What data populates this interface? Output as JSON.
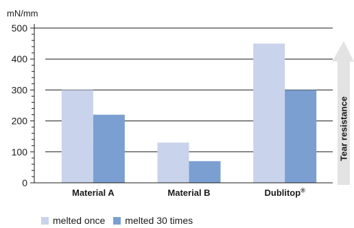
{
  "chart_data": {
    "type": "bar",
    "unit_label": "mN/mm",
    "categories": [
      "Material A",
      "Material B",
      "Dublitop"
    ],
    "category_superscripts": [
      "",
      "",
      "®"
    ],
    "series": [
      {
        "name": "melted once",
        "color": "#c9d3eb",
        "values": [
          300,
          130,
          450
        ]
      },
      {
        "name": "melted 30 times",
        "color": "#7b9fd1",
        "values": [
          220,
          70,
          300
        ]
      }
    ],
    "ylim": [
      0,
      500
    ],
    "yticks": [
      0,
      100,
      200,
      300,
      400,
      500
    ],
    "grid": true,
    "legend_position": "bottom-left",
    "side_label": "Tear resistance",
    "arrow_color": "#e3e3e3"
  }
}
